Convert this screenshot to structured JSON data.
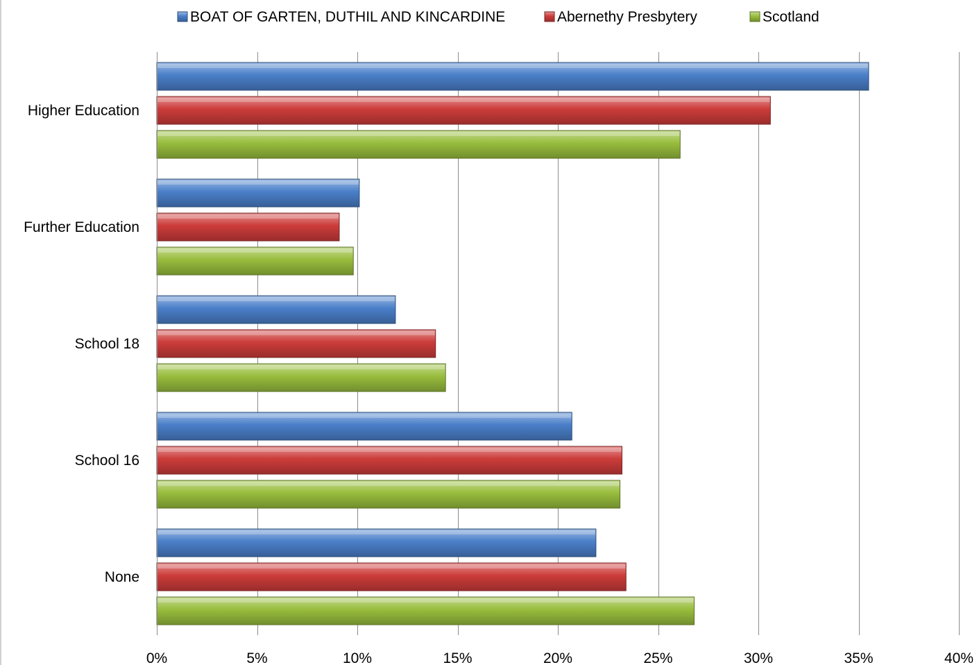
{
  "chart_data": {
    "type": "bar",
    "orientation": "horizontal",
    "title": "",
    "xlabel": "",
    "ylabel": "",
    "categories": [
      "Higher Education",
      "Further Education",
      "School 18",
      "School 16",
      "None"
    ],
    "series": [
      {
        "name": "BOAT OF GARTEN, DUTHIL AND KINCARDINE",
        "color": "#4a7fc9",
        "values": [
          35.5,
          10.1,
          11.9,
          20.7,
          21.9
        ]
      },
      {
        "name": "Abernethy Presbytery",
        "color": "#cc3c3a",
        "values": [
          30.6,
          9.1,
          13.9,
          23.2,
          23.4
        ]
      },
      {
        "name": "Scotland",
        "color": "#98bd3d",
        "values": [
          26.1,
          9.8,
          14.4,
          23.1,
          26.8
        ]
      }
    ],
    "x_ticks": [
      "0%",
      "5%",
      "10%",
      "15%",
      "20%",
      "25%",
      "30%",
      "35%",
      "40%"
    ],
    "xlim": [
      0,
      40
    ],
    "grid": true,
    "legend_position": "top"
  }
}
